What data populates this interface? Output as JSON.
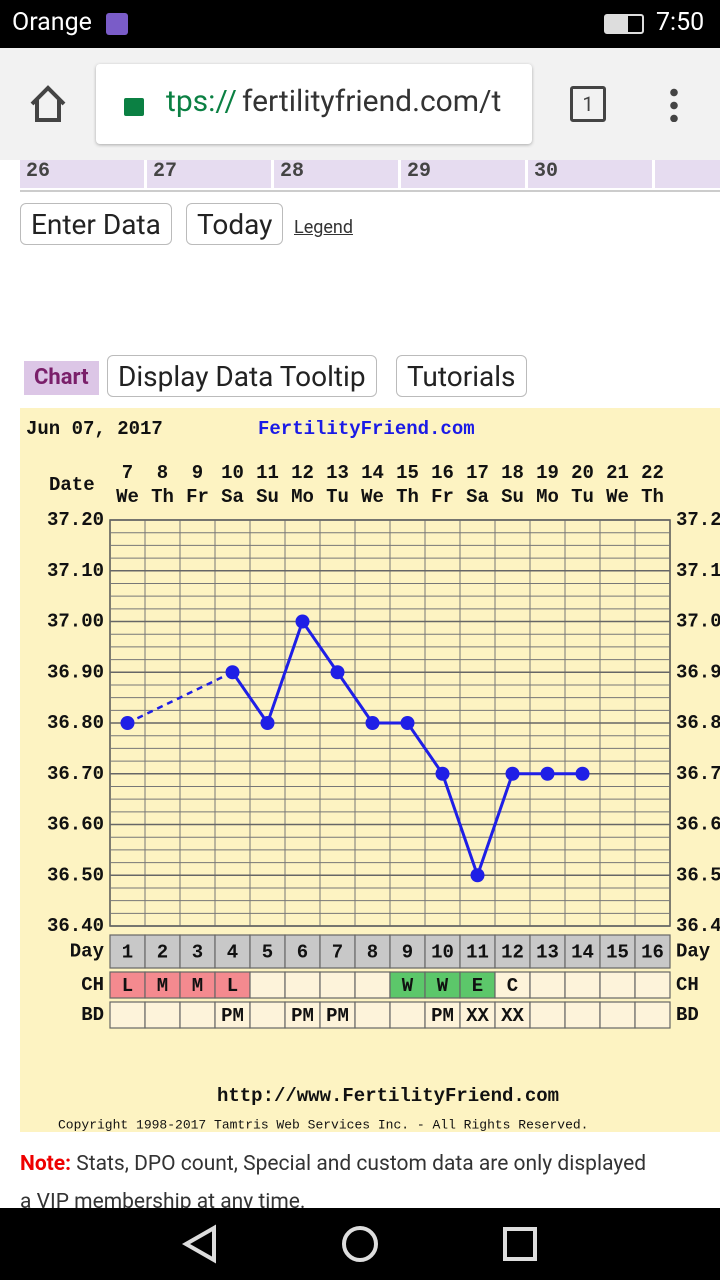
{
  "status_bar": {
    "carrier": "Orange",
    "time": "7:50"
  },
  "browser": {
    "url_scheme": "tps://",
    "url_host": "fertilityfriend.com/t",
    "tab_count": "1"
  },
  "calendar": {
    "days": [
      "26",
      "27",
      "28",
      "29",
      "30"
    ]
  },
  "buttons": {
    "enter_data": "Enter Data",
    "today": "Today",
    "legend": "Legend"
  },
  "tabs": {
    "chart": "Chart",
    "tooltip": "Display Data Tooltip",
    "tutorials": "Tutorials"
  },
  "chart_data": {
    "type": "line",
    "date": "Jun 07, 2017",
    "site": "FertilityFriend.com",
    "date_label": "Date",
    "categories": [
      "7",
      "8",
      "9",
      "10",
      "11",
      "12",
      "13",
      "14",
      "15",
      "16",
      "17",
      "18",
      "19",
      "20",
      "21",
      "22"
    ],
    "weekdays": [
      "We",
      "Th",
      "Fr",
      "Sa",
      "Su",
      "Mo",
      "Tu",
      "We",
      "Th",
      "Fr",
      "Sa",
      "Su",
      "Mo",
      "Tu",
      "We",
      "Th"
    ],
    "values": [
      36.8,
      null,
      null,
      36.9,
      36.8,
      37.0,
      36.9,
      36.8,
      36.8,
      36.7,
      36.5,
      36.7,
      36.7,
      36.7,
      null,
      null
    ],
    "color": "#1f1fe6",
    "ylim": [
      36.4,
      37.2
    ],
    "yticks": [
      {
        "value": 37.2,
        "label": "37.20"
      },
      {
        "value": 37.1,
        "label": "37.10"
      },
      {
        "value": 37.0,
        "label": "37.00"
      },
      {
        "value": 36.9,
        "label": "36.90"
      },
      {
        "value": 36.8,
        "label": "36.80"
      },
      {
        "value": 36.7,
        "label": "36.70"
      },
      {
        "value": 36.6,
        "label": "36.60"
      },
      {
        "value": 36.5,
        "label": "36.50"
      },
      {
        "value": 36.4,
        "label": "36.40"
      }
    ],
    "grid": true,
    "day_label": "Day",
    "days": [
      "1",
      "2",
      "3",
      "4",
      "5",
      "6",
      "7",
      "8",
      "9",
      "10",
      "11",
      "12",
      "13",
      "14",
      "15",
      "16"
    ],
    "ch_label": "CH",
    "ch": [
      "L",
      "M",
      "M",
      "L",
      null,
      null,
      null,
      null,
      "W",
      "W",
      "E",
      "C",
      null,
      null,
      null,
      null
    ],
    "ch_colors": [
      "#f48a8f",
      "#f48a8f",
      "#f48a8f",
      "#f48a8f",
      null,
      null,
      null,
      null,
      "#5cc76a",
      "#5cc76a",
      "#5cc76a",
      null,
      null,
      null,
      null,
      null
    ],
    "bd_label": "BD",
    "bd": [
      null,
      null,
      null,
      "PM",
      null,
      "PM",
      "PM",
      null,
      null,
      "PM",
      "XX",
      "XX",
      null,
      null,
      null,
      null
    ],
    "footer_url": "http://www.FertilityFriend.com",
    "copyright": "Copyright 1998-2017 Tamtris Web Services Inc. - All Rights Reserved."
  },
  "note": {
    "label": "Note:",
    "text": "Stats, DPO count, Special and custom data are only displayed",
    "text2": "a VIP membership at any time."
  }
}
